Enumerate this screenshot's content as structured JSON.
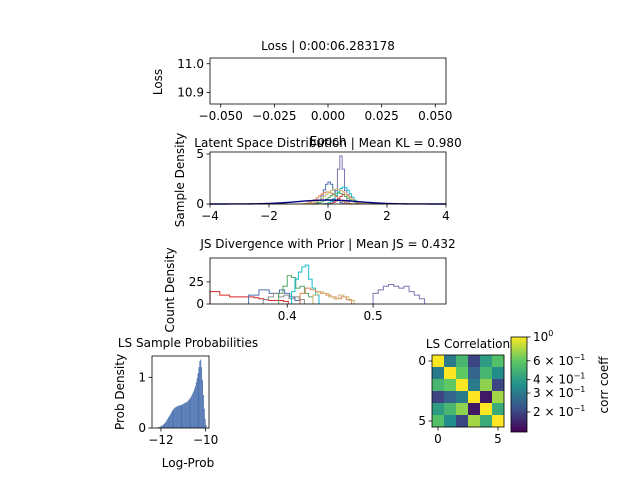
{
  "chart_data": [
    {
      "type": "line",
      "title": "Loss | 0:00:06.283178",
      "xlabel": "Epoch",
      "ylabel": "Loss",
      "xlim": [
        -0.055,
        0.055
      ],
      "ylim": [
        10.86,
        11.02
      ],
      "xticks": [
        -0.05,
        -0.025,
        0.0,
        0.025,
        0.05
      ],
      "xtick_labels": [
        "−0.050",
        "−0.025",
        "0.000",
        "0.025",
        "0.050"
      ],
      "yticks": [
        10.9,
        11.0
      ],
      "ytick_labels": [
        "10.9",
        "11.0"
      ],
      "series": [
        {
          "x": [],
          "y": []
        }
      ]
    },
    {
      "type": "line",
      "title": "Latent Space Distribution | Mean KL = 0.980",
      "xlabel": "",
      "ylabel": "Sample Density",
      "xlim": [
        -4,
        4
      ],
      "ylim": [
        0,
        5.2
      ],
      "xticks": [
        -4,
        -2,
        0,
        2,
        4
      ],
      "xtick_labels": [
        "−4",
        "−2",
        "0",
        "2",
        "4"
      ],
      "yticks": [
        0,
        5
      ],
      "ytick_labels": [
        "0",
        "5"
      ],
      "prior": {
        "color": "#000080"
      },
      "series": [
        {
          "color": "#8172b3",
          "center": 0.4,
          "sigma": 0.1,
          "peak": 4.8
        },
        {
          "color": "#4c72b0",
          "center": 0.0,
          "sigma": 0.17,
          "peak": 2.2
        },
        {
          "color": "#17becf",
          "center": 0.5,
          "sigma": 0.22,
          "peak": 1.7
        },
        {
          "color": "#dd8452",
          "center": -0.05,
          "sigma": 0.3,
          "peak": 1.2
        },
        {
          "color": "#55a868",
          "center": 0.3,
          "sigma": 0.3,
          "peak": 1.1
        },
        {
          "color": "#c44e52",
          "center": 0.55,
          "sigma": 0.2,
          "peak": 1.0
        },
        {
          "color": "#ccb974",
          "center": 0.25,
          "sigma": 0.35,
          "peak": 1.5
        }
      ]
    },
    {
      "type": "line",
      "title": "JS Divergence with Prior | Mean JS = 0.432",
      "xlabel": "",
      "ylabel": "Count Density",
      "xlim": [
        0.31,
        0.585
      ],
      "ylim": [
        0,
        52
      ],
      "xticks": [
        0.4,
        0.5
      ],
      "xtick_labels": [
        "0.4",
        "0.5"
      ],
      "yticks": [
        0,
        25
      ],
      "ytick_labels": [
        "0",
        "25"
      ],
      "series": [
        {
          "color": "#d62728",
          "x0": 0.31,
          "bin": 0.0057,
          "counts": [
            14,
            14,
            10,
            10,
            8,
            8,
            8,
            8,
            8,
            7,
            6,
            5,
            4,
            4,
            4,
            3
          ]
        },
        {
          "color": "#4c72b0",
          "x0": 0.355,
          "bin": 0.006,
          "counts": [
            10,
            10,
            16,
            16,
            12,
            12,
            16,
            12,
            8,
            4
          ]
        },
        {
          "color": "#8c8c8c",
          "x0": 0.372,
          "bin": 0.006,
          "counts": [
            5,
            8,
            12,
            8,
            10,
            6,
            8,
            5
          ]
        },
        {
          "color": "#55a868",
          "x0": 0.39,
          "bin": 0.005,
          "counts": [
            12,
            20,
            32,
            30,
            18,
            20,
            12,
            8
          ]
        },
        {
          "color": "#17becf",
          "x0": 0.405,
          "bin": 0.004,
          "counts": [
            14,
            28,
            36,
            42,
            44,
            28,
            18,
            10
          ]
        },
        {
          "color": "#dd8452",
          "x0": 0.415,
          "bin": 0.006,
          "counts": [
            12,
            18,
            16,
            14,
            12,
            10,
            8,
            6,
            8,
            5
          ]
        },
        {
          "color": "#ccb974",
          "x0": 0.43,
          "bin": 0.006,
          "counts": [
            10,
            14,
            12,
            8,
            6,
            10,
            8,
            4
          ]
        },
        {
          "color": "#8172b3",
          "x0": 0.5,
          "bin": 0.006,
          "counts": [
            12,
            16,
            20,
            22,
            20,
            18,
            20,
            14,
            10,
            6
          ]
        }
      ]
    },
    {
      "type": "bar",
      "title": "LS Sample Probabilities",
      "xlabel": "Log-Prob",
      "ylabel": "Prob Density",
      "xlim": [
        -12.4,
        -9.85
      ],
      "ylim": [
        0,
        1.42
      ],
      "xticks": [
        -12,
        -10
      ],
      "xtick_labels": [
        "−12",
        "−10"
      ],
      "yticks": [
        0,
        1
      ],
      "ytick_labels": [
        "0",
        "1"
      ],
      "color": "#4c72b0",
      "x0": -12.2,
      "bin": 0.04,
      "values": [
        0.01,
        0.01,
        0.02,
        0.02,
        0.03,
        0.04,
        0.05,
        0.06,
        0.08,
        0.1,
        0.12,
        0.15,
        0.18,
        0.21,
        0.24,
        0.27,
        0.3,
        0.33,
        0.36,
        0.38,
        0.4,
        0.41,
        0.42,
        0.43,
        0.44,
        0.44,
        0.45,
        0.45,
        0.46,
        0.47,
        0.48,
        0.49,
        0.5,
        0.51,
        0.52,
        0.54,
        0.56,
        0.58,
        0.61,
        0.64,
        0.68,
        0.72,
        0.77,
        0.83,
        0.9,
        0.98,
        1.08,
        1.2,
        1.32,
        1.35,
        1.2,
        0.95,
        0.65,
        0.38,
        0.18,
        0.06
      ]
    },
    {
      "type": "heatmap",
      "title": "LS Correlation",
      "xticks": [
        0,
        5
      ],
      "yticks": [
        0,
        5
      ],
      "xtick_labels": [
        "0",
        "5"
      ],
      "ytick_labels": [
        "0",
        "5"
      ],
      "colorbar_label": "corr coeff",
      "colorbar_ticks": [
        "10",
        "6 × 10",
        "4 × 10",
        "3 × 10",
        "2 × 10"
      ],
      "colorbar_tick_exponents": [
        "0",
        "−1",
        "−1",
        "−1",
        "−1"
      ],
      "colorbar_tick_values": [
        1.0,
        0.6,
        0.4,
        0.3,
        0.2
      ],
      "colorbar_range": [
        0.13,
        1.0
      ],
      "values": [
        [
          1.0,
          0.3,
          0.5,
          0.2,
          0.4,
          0.55
        ],
        [
          0.3,
          1.0,
          0.6,
          0.25,
          0.5,
          0.35
        ],
        [
          0.5,
          0.6,
          1.0,
          0.3,
          0.7,
          0.2
        ],
        [
          0.2,
          0.25,
          0.3,
          1.0,
          0.15,
          0.75
        ],
        [
          0.4,
          0.5,
          0.7,
          0.15,
          1.0,
          0.45
        ],
        [
          0.55,
          0.35,
          0.2,
          0.75,
          0.45,
          1.0
        ]
      ]
    }
  ]
}
